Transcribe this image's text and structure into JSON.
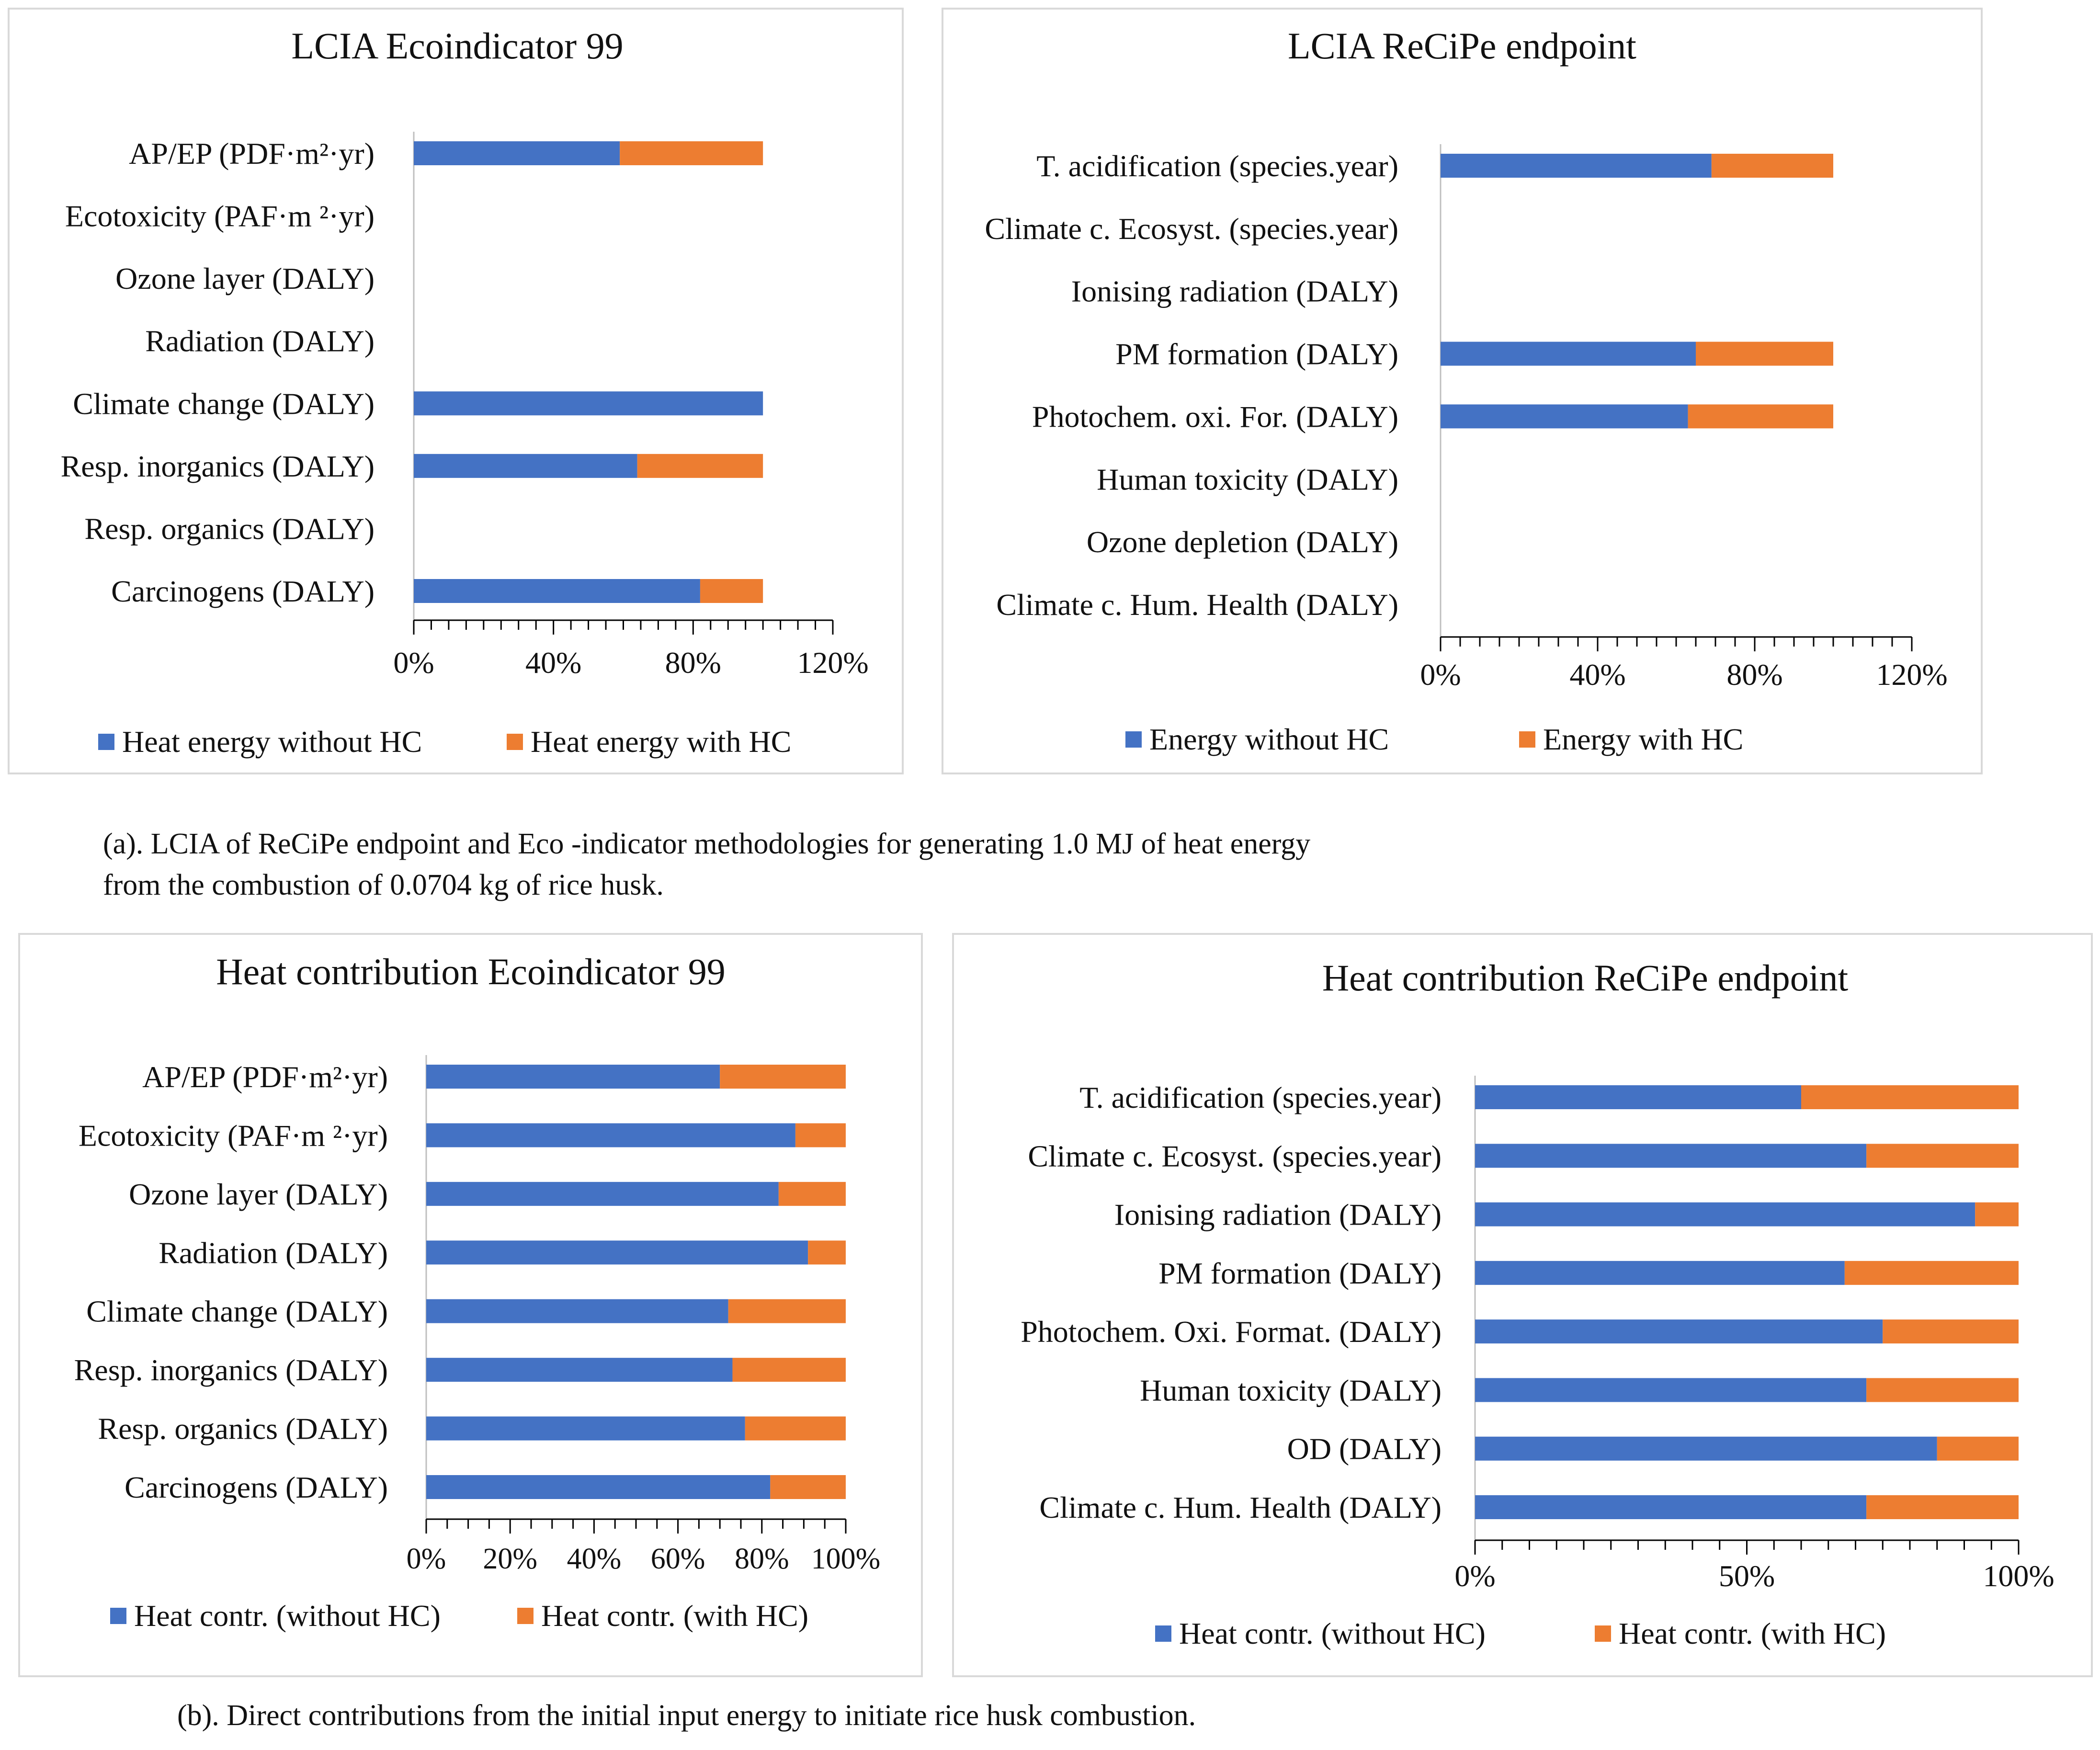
{
  "colors": {
    "series1": "#4472C4",
    "series2": "#ED7D31",
    "panel_border": "#D9D9D9",
    "axis": "#000000"
  },
  "captions": {
    "a_line1": "(a). LCIA of  ReCiPe endpoint and Eco -indicator methodologies for generating 1.0 MJ of heat energy",
    "a_line2": "from the combustion of 0.0704 kg of rice husk.",
    "b": "(b). Direct contributions from the initial input energy to initiate rice husk combustion."
  },
  "chart_data": [
    {
      "id": "a-left",
      "type": "bar",
      "stacked": true,
      "orientation": "horizontal",
      "title": "LCIA Ecoindicator 99",
      "categories": [
        "AP/EP (PDF·m²·yr)",
        "Ecotoxicity (PAF·m ²·yr)",
        "Ozone layer (DALY)",
        "Radiation (DALY)",
        "Climate change (DALY)",
        "Resp. inorganics (DALY)",
        "Resp. organics (DALY)",
        "Carcinogens (DALY)"
      ],
      "series": [
        {
          "name": "Heat energy without HC",
          "values": [
            59,
            0,
            0,
            0,
            100,
            64,
            0,
            82
          ]
        },
        {
          "name": "Heat energy with HC",
          "values": [
            41,
            0,
            0,
            0,
            0,
            36,
            0,
            18
          ]
        }
      ],
      "xlim": [
        0,
        120
      ],
      "xticks": [
        0,
        40,
        80,
        120
      ],
      "xtick_labels": [
        "0%",
        "40%",
        "80%",
        "120%"
      ],
      "legend": "bottom"
    },
    {
      "id": "a-right",
      "type": "bar",
      "stacked": true,
      "orientation": "horizontal",
      "title": "LCIA ReCiPe endpoint",
      "categories": [
        "T. acidification (species.year)",
        "Climate c. Ecosyst. (species.year)",
        "Ionising radiation (DALY)",
        "PM formation (DALY)",
        "Photochem. oxi. For. (DALY)",
        "Human toxicity (DALY)",
        "Ozone depletion (DALY)",
        "Climate c. Hum. Health (DALY)"
      ],
      "series": [
        {
          "name": "Energy without HC",
          "values": [
            69,
            0,
            0,
            65,
            63,
            0,
            0,
            0
          ]
        },
        {
          "name": "Energy with HC",
          "values": [
            31,
            0,
            0,
            35,
            37,
            0,
            0,
            0
          ]
        }
      ],
      "xlim": [
        0,
        120
      ],
      "xticks": [
        0,
        40,
        80,
        120
      ],
      "xtick_labels": [
        "0%",
        "40%",
        "80%",
        "120%"
      ],
      "legend": "bottom"
    },
    {
      "id": "b-left",
      "type": "bar",
      "stacked": true,
      "orientation": "horizontal",
      "title": "Heat contribution Ecoindicator 99",
      "categories": [
        "AP/EP (PDF·m²·yr)",
        "Ecotoxicity (PAF·m ²·yr)",
        "Ozone layer (DALY)",
        "Radiation (DALY)",
        "Climate change (DALY)",
        "Resp. inorganics (DALY)",
        "Resp. organics (DALY)",
        "Carcinogens (DALY)"
      ],
      "series": [
        {
          "name": "Heat contr. (without HC)",
          "values": [
            70,
            88,
            84,
            91,
            72,
            73,
            76,
            82
          ]
        },
        {
          "name": "Heat contr. (with HC)",
          "values": [
            30,
            12,
            16,
            9,
            28,
            27,
            24,
            18
          ]
        }
      ],
      "xlim": [
        0,
        100
      ],
      "xticks": [
        0,
        20,
        40,
        60,
        80,
        100
      ],
      "xtick_labels": [
        "0%",
        "20%",
        "40%",
        "60%",
        "80%",
        "100%"
      ],
      "legend": "bottom"
    },
    {
      "id": "b-right",
      "type": "bar",
      "stacked": true,
      "orientation": "horizontal",
      "title": "Heat contribution ReCiPe endpoint",
      "categories": [
        "T. acidification (species.year)",
        "Climate c. Ecosyst. (species.year)",
        "Ionising radiation (DALY)",
        "PM formation (DALY)",
        "Photochem. Oxi. Format. (DALY)",
        "Human toxicity (DALY)",
        "OD (DALY)",
        "Climate c. Hum. Health (DALY)"
      ],
      "series": [
        {
          "name": "Heat contr. (without HC)",
          "values": [
            60,
            72,
            92,
            68,
            75,
            72,
            85,
            72
          ]
        },
        {
          "name": "Heat contr. (with HC)",
          "values": [
            40,
            28,
            8,
            32,
            25,
            28,
            15,
            28
          ]
        }
      ],
      "xlim": [
        0,
        100
      ],
      "xticks": [
        0,
        50,
        100
      ],
      "xtick_labels": [
        "0%",
        "50%",
        "100%"
      ],
      "legend": "bottom"
    }
  ]
}
